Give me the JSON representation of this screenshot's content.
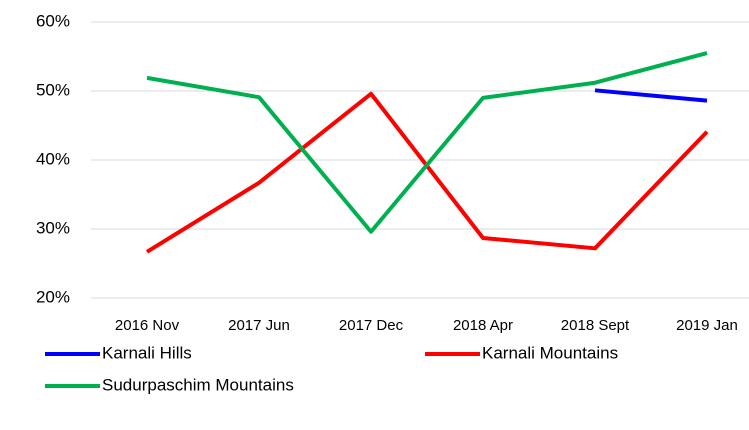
{
  "chart_data": {
    "type": "line",
    "categories": [
      "2016 Nov",
      "2017 Jun",
      "2017 Dec",
      "2018 Apr",
      "2018 Sept",
      "2019 Jan"
    ],
    "series": [
      {
        "name": "Karnali Hills",
        "color": "#0000ff",
        "values": [
          null,
          null,
          null,
          null,
          50.1,
          48.6
        ]
      },
      {
        "name": "Karnali Mountains",
        "color": "#ff0000",
        "values": [
          26.7,
          36.7,
          49.6,
          28.7,
          27.2,
          44.1
        ]
      },
      {
        "name": "Sudurpaschim Mountains",
        "color": "#00b050",
        "values": [
          51.9,
          49.1,
          29.6,
          49.0,
          51.2,
          55.5
        ]
      }
    ],
    "ylim": [
      20,
      60
    ],
    "yticks": [
      {
        "value": 20,
        "label": "20%"
      },
      {
        "value": 30,
        "label": "30%"
      },
      {
        "value": 40,
        "label": "40%"
      },
      {
        "value": 50,
        "label": "50%"
      },
      {
        "value": 60,
        "label": "60%"
      }
    ],
    "grid": true,
    "legend": "bottom"
  }
}
